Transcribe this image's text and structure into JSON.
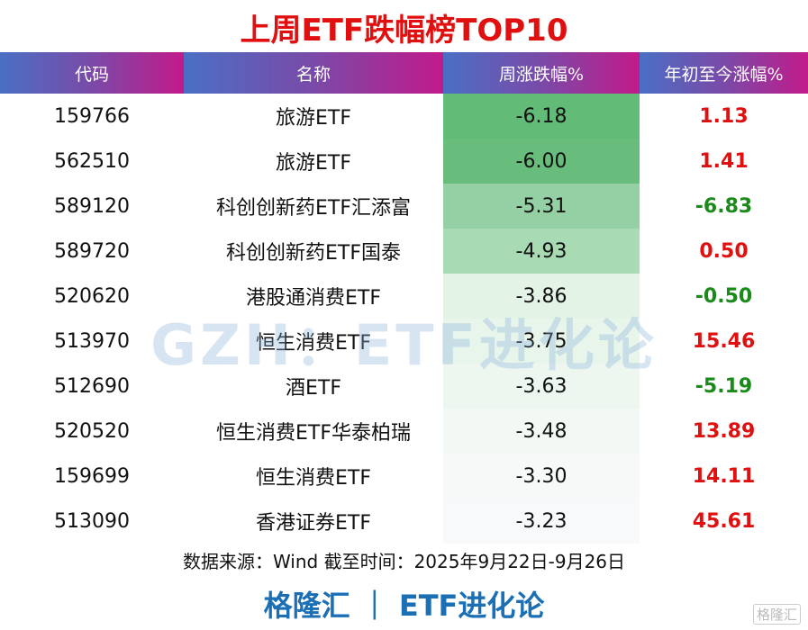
{
  "title": "上周ETF跌幅榜TOP10",
  "headers": [
    "代码",
    "名称",
    "周涨跌幅%",
    "年初至今涨幅%"
  ],
  "colors": {
    "up": "#e01010",
    "down": "#1a8a1a",
    "brand": "#1a6fb5"
  },
  "rows": [
    {
      "code": "159766",
      "name": "旅游ETF",
      "week": "-6.18",
      "ytd": "1.13",
      "bg": "#63bb78"
    },
    {
      "code": "562510",
      "name": "旅游ETF",
      "week": "-6.00",
      "ytd": "1.41",
      "bg": "#68bd7c"
    },
    {
      "code": "589120",
      "name": "科创创新药ETF汇添富",
      "week": "-5.31",
      "ytd": "-6.83",
      "bg": "#94d0a3"
    },
    {
      "code": "589720",
      "name": "科创创新药ETF国泰",
      "week": "-4.93",
      "ytd": "0.50",
      "bg": "#a8dab4"
    },
    {
      "code": "520620",
      "name": "港股通消费ETF",
      "week": "-3.86",
      "ytd": "-0.50",
      "bg": "#e3f3e6"
    },
    {
      "code": "513970",
      "name": "恒生消费ETF",
      "week": "-3.75",
      "ytd": "15.46",
      "bg": "#e8f5eb"
    },
    {
      "code": "512690",
      "name": "酒ETF",
      "week": "-3.63",
      "ytd": "-5.19",
      "bg": "#edf7ef"
    },
    {
      "code": "520520",
      "name": "恒生消费ETF华泰柏瑞",
      "week": "-3.48",
      "ytd": "13.89",
      "bg": "#f2f8f4"
    },
    {
      "code": "159699",
      "name": "恒生消费ETF",
      "week": "-3.30",
      "ytd": "14.11",
      "bg": "#f6f9f8"
    },
    {
      "code": "513090",
      "name": "香港证券ETF",
      "week": "-3.23",
      "ytd": "45.61",
      "bg": "#f8f9fb"
    }
  ],
  "watermark": "GZH：ETF进化论",
  "source": "数据来源：Wind 截至时间：2025年9月22日-9月26日",
  "brand": "格隆汇 ｜ ETF进化论",
  "logo": "格隆汇"
}
